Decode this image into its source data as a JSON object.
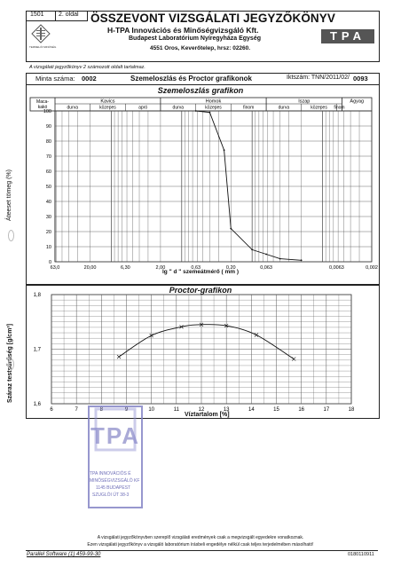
{
  "header": {
    "doc_number": "1501",
    "page_label": "2. oldal",
    "title": "ÖSSZEVONT VIZSGÁLATI JEGYZŐKÖNYV",
    "company": "H-TPA Innovációs és Minőségvizsgáló Kft.",
    "lab": "Budapest Laboratórium  Nyíregyháza Egység",
    "address": "4551 Oros, Keverőtelep, hrsz: 02260.",
    "logo_text": "TPA",
    "note": "A vizsgálati jegyzőkönyv 2 számozott oldalt tartalmaz."
  },
  "sample_row": {
    "sample_label": "Minta száma:",
    "sample_value": "0002",
    "section_title": "Szemeloszlás és Proctor grafikonok",
    "reg_label": "Iktszám: TNN/2011/02/",
    "reg_value": "0093"
  },
  "grain_chart": {
    "title": "Szemeloszlás grafikon",
    "class_corner": "Maca-\nkakó",
    "groups": [
      "Kavics",
      "Homok",
      "Iszap",
      "Agyag"
    ],
    "subgroups": [
      "durva",
      "közepes",
      "apró",
      "durva",
      "közepes",
      "finom",
      "durva",
      "közepes",
      "finom"
    ],
    "ylabel": "Áteeset tömeg (%)",
    "xlabel": "lg  \" d \"  szemeátmérő    ( mm )",
    "y_ticks": [
      "100",
      "90",
      "80",
      "70",
      "60",
      "50",
      "40",
      "30",
      "20",
      "10",
      "0"
    ],
    "x_ticks": [
      "63,0",
      "20,00",
      "6,30",
      "2,00",
      "0,63",
      "0,20",
      "0,063",
      "0,0063",
      "0,002"
    ]
  },
  "proctor_chart": {
    "title": "Proctor-grafikon",
    "ylabel": "Száraz testsűrűség  [g/cm³]",
    "xlabel": "Víztartalom [%]",
    "y_ticks": [
      "1,8",
      "1,7",
      "1,6"
    ],
    "x_ticks": [
      "6",
      "7",
      "8",
      "9",
      "10",
      "11",
      "12",
      "13",
      "14",
      "15",
      "16",
      "17",
      "18"
    ]
  },
  "stamp": {
    "line1": "TPA INNOVÁCIÓS É",
    "line2": "MINŐSÉGVIZSGÁLÓ KF",
    "line3": "1145 BUDAPEST",
    "line4": "SZUGLÓI ÚT 38-3"
  },
  "footer": {
    "notice1": "A vizsgálati jegyzőkönyvben szereplő vizsgálati eredmények csak a megvizsgált egyedekre vonatkoznak.",
    "notice2": "Ezen vizsgálati jegyzőkönyv a vizsgáló laboratórium írásbeli engedélye nélkül csak teljes terjedelmében másolható!",
    "software": "Parallel Software    (1) 459-99-30",
    "code": "0180110911"
  },
  "chart_data": [
    {
      "type": "line",
      "title": "Szemeloszlás grafikon",
      "xlabel": "lg  \" d \"  szemeátmérő    ( mm )",
      "ylabel": "Áteeset tömeg (%)",
      "x_scale": "log, decreasing",
      "ylim": [
        0,
        100
      ],
      "x": [
        0.63,
        0.4,
        0.25,
        0.2,
        0.1,
        0.063,
        0.04,
        0.02
      ],
      "y": [
        100,
        99,
        74,
        22,
        8,
        5,
        2,
        1
      ]
    },
    {
      "type": "line",
      "title": "Proctor-grafikon",
      "xlabel": "Víztartalom [%]",
      "ylabel": "Száraz testsűrűség  [g/cm³]",
      "xlim": [
        6,
        18
      ],
      "ylim": [
        1.6,
        1.8
      ],
      "x": [
        8.7,
        10.0,
        11.2,
        12.0,
        13.0,
        14.2,
        15.7
      ],
      "y": [
        1.686,
        1.725,
        1.741,
        1.745,
        1.743,
        1.726,
        1.682
      ]
    }
  ]
}
